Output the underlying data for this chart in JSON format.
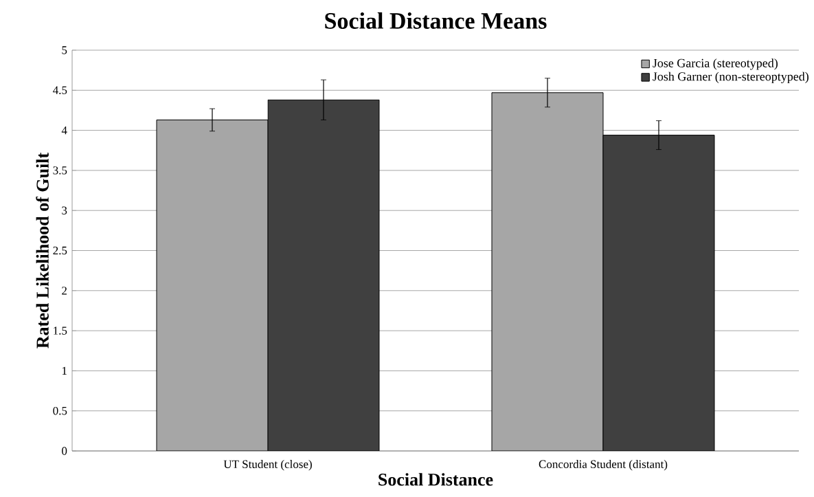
{
  "chart_data": {
    "type": "bar",
    "title": "Social Distance Means",
    "xlabel": "Social Distance",
    "ylabel": "Rated Likelihood of Guilt",
    "categories": [
      "UT Student (close)",
      "Concordia Student (distant)"
    ],
    "series": [
      {
        "name": "Jose Garcia (stereotyped)",
        "color": "#a6a6a6",
        "values": [
          4.13,
          4.47
        ],
        "errors": [
          0.14,
          0.18
        ]
      },
      {
        "name": "Josh Garner (non-stereoptyped)",
        "color": "#404040",
        "values": [
          4.38,
          3.94
        ],
        "errors": [
          0.25,
          0.18
        ]
      }
    ],
    "ylim": [
      0,
      5
    ],
    "yticks": [
      0,
      0.5,
      1,
      1.5,
      2,
      2.5,
      3,
      3.5,
      4,
      4.5,
      5
    ],
    "grid": "y",
    "legend": "top right"
  }
}
